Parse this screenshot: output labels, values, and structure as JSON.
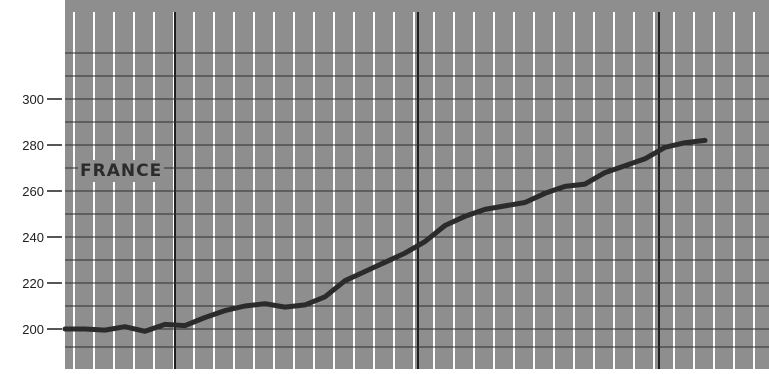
{
  "chart_data": {
    "type": "line",
    "title": "",
    "xlabel": "",
    "ylabel": "",
    "annotation": "FRANCE",
    "ylim": [
      195,
      325
    ],
    "y_ticks": [
      200,
      220,
      240,
      260,
      280,
      300
    ],
    "grid": true,
    "background_color": "#8e8e8e",
    "line_color": "#2b2b2b",
    "series": [
      {
        "values": [
          200,
          200,
          199.5,
          201,
          199,
          202,
          201.5,
          205,
          208,
          210,
          211,
          209.5,
          210.5,
          214,
          221,
          225,
          229,
          233,
          238,
          245,
          249,
          252,
          253.5,
          255,
          259,
          262,
          263,
          268,
          271,
          274,
          279,
          281,
          282
        ]
      }
    ]
  }
}
